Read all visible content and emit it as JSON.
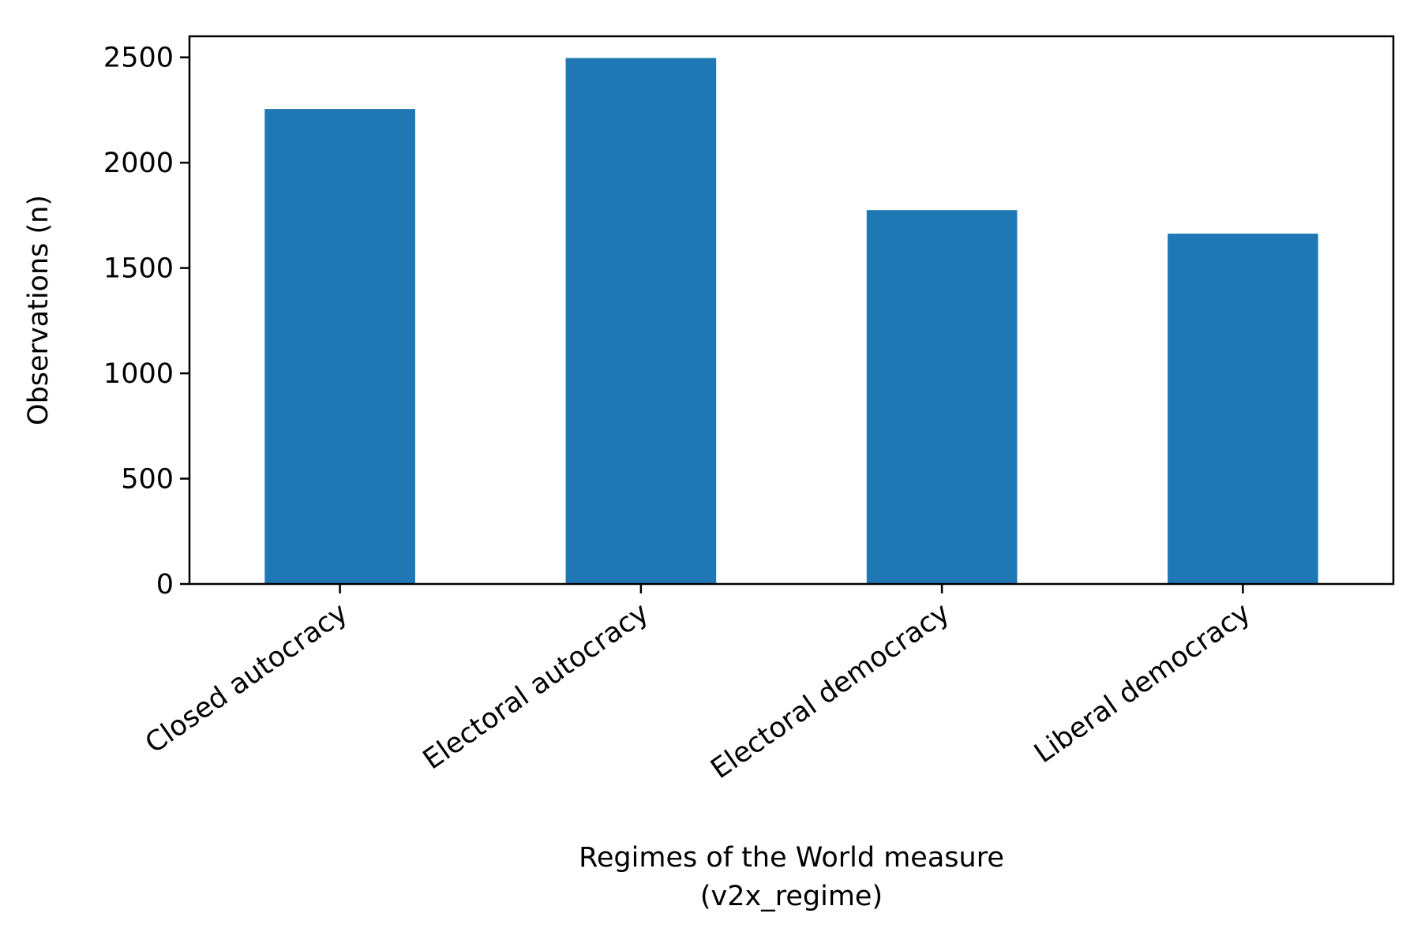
{
  "chart_data": {
    "type": "bar",
    "categories": [
      "Closed autocracy",
      "Electoral autocracy",
      "Electoral democracy",
      "Liberal democracy"
    ],
    "values": [
      2255,
      2497,
      1775,
      1663
    ],
    "xlabel_lines": [
      "Regimes of the World measure",
      "(v2x_regime)"
    ],
    "ylabel": "Observations (n)",
    "ylim": [
      0,
      2600
    ],
    "yticks": [
      0,
      500,
      1000,
      1500,
      2000,
      2500
    ],
    "grid": false,
    "bar_color": "#1f77b4"
  }
}
